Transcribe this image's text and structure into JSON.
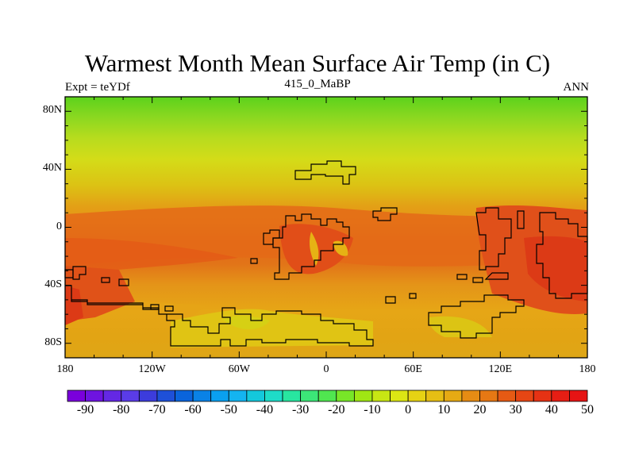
{
  "title": "Warmest Month Mean Surface Air Temp (in C)",
  "subtitle_left": "Expt = teYDf",
  "subtitle_center": "415_0_MaBP",
  "subtitle_right": "ANN",
  "map": {
    "lat_ticks": [
      "80N",
      "40N",
      "0",
      "40S",
      "80S"
    ],
    "lat_values": [
      80,
      40,
      0,
      -40,
      -80
    ],
    "lon_ticks": [
      "180",
      "120W",
      "60W",
      "0",
      "60E",
      "120E",
      "180"
    ],
    "lon_values": [
      -180,
      -120,
      -60,
      0,
      60,
      120,
      180
    ]
  },
  "colorbar": {
    "labels": [
      "-90",
      "-80",
      "-70",
      "-60",
      "-50",
      "-40",
      "-30",
      "-20",
      "-10",
      "0",
      "10",
      "20",
      "30",
      "40",
      "50"
    ],
    "colors": [
      "#7a00dc",
      "#6e14e0",
      "#6428e4",
      "#5a3ce8",
      "#3c3cdc",
      "#1e50d8",
      "#0a64dc",
      "#0a82e6",
      "#0aa0f0",
      "#14b4f0",
      "#14c8dc",
      "#1edcc8",
      "#28e6a0",
      "#3ce678",
      "#50e650",
      "#78e628",
      "#a0e614",
      "#c8e614",
      "#dce614",
      "#e6d214",
      "#e6be14",
      "#e6aa14",
      "#e68c14",
      "#e67814",
      "#e65a14",
      "#e64614",
      "#e63214",
      "#e61e14",
      "#e61414"
    ]
  }
}
